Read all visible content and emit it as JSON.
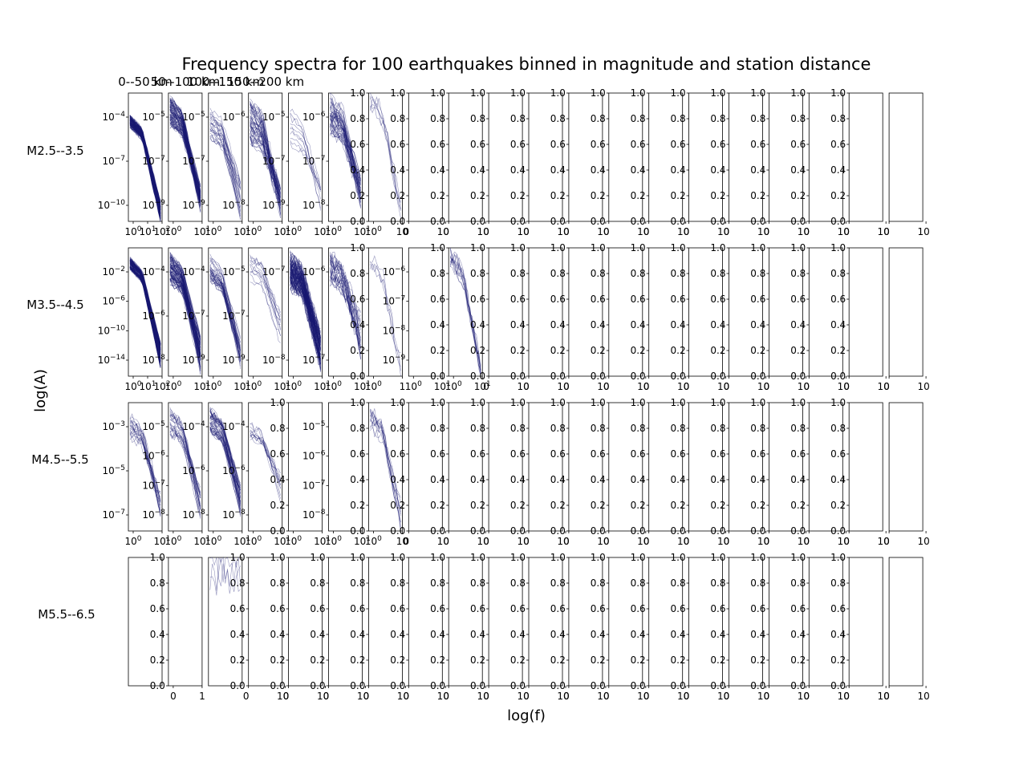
{
  "figure": {
    "title": "Frequency spectra for 100 earthquakes binned in magnitude and station distance",
    "xlabel": "log(f)",
    "ylabel": "log(A)",
    "column_titles": [
      "0--50 km",
      "50--100 km",
      "100--150 km",
      "150--200 km"
    ],
    "row_labels": [
      "M2.5--3.5",
      "M3.5--4.5",
      "M4.5--5.5",
      "M5.5--6.5"
    ],
    "line_color": "#191970"
  },
  "chart_data": {
    "type": "line",
    "description_grid": "4 rows (magnitude bins) x 20 columns (distance bins); log-log spectra of amplitude A vs frequency f",
    "columns": 20,
    "rows": [
      {
        "label": "M2.5--3.5",
        "panels": [
          {
            "col": 0,
            "yticks": [
              "10^-4",
              "10^-7",
              "10^-10"
            ],
            "xticks": [
              "10^0",
              "10^1",
              "10^2"
            ],
            "ylim": [
              1e-12,
              0.01
            ],
            "curves": 140,
            "amp_hi": [
              -3.8,
              -4.6
            ],
            "amp_lo": [
              -10.5,
              -12.0
            ]
          },
          {
            "col": 1,
            "yticks": [
              "10^-5",
              "10^-7",
              "10^-9"
            ],
            "xticks": [
              "10^0",
              "10^1"
            ],
            "ylim": [
              1e-10,
              0.0001
            ],
            "curves": 80,
            "amp_hi": [
              -4.2,
              -5.6
            ],
            "amp_lo": [
              -8.4,
              -9.5
            ]
          },
          {
            "col": 2,
            "yticks": [
              "10^-5",
              "10^-7",
              "10^-9"
            ],
            "xticks": [
              "10^0",
              "10^1"
            ],
            "ylim": [
              1e-10,
              0.0001
            ],
            "curves": 25,
            "amp_hi": [
              -4.8,
              -6.2
            ],
            "amp_lo": [
              -8.0,
              -9.8
            ]
          },
          {
            "col": 3,
            "yticks": [
              "10^-6",
              "10^-8"
            ],
            "xticks": [
              "10^0",
              "10^1"
            ],
            "ylim": [
              1e-09,
              1e-05
            ],
            "curves": 50,
            "amp_hi": [
              -5.2,
              -6.6
            ],
            "amp_lo": [
              -8.0,
              -8.8
            ]
          },
          {
            "col": 4,
            "yticks": [
              "10^-5",
              "10^-7",
              "10^-9"
            ],
            "xticks": [
              "10^0",
              "10^1"
            ],
            "ylim": [
              1e-10,
              0.0001
            ],
            "curves": 10,
            "amp_hi": [
              -4.6,
              -6.4
            ],
            "amp_lo": [
              -8.4,
              -9.6
            ]
          },
          {
            "col": 5,
            "yticks": [
              "10^-6",
              "10^-7",
              "10^-8"
            ],
            "xticks": [
              "10^0",
              "10^1"
            ],
            "ylim": [
              1e-09,
              3e-06
            ],
            "curves": 45,
            "amp_hi": [
              -5.6,
              -6.6
            ],
            "amp_lo": [
              -7.8,
              -8.6
            ]
          },
          {
            "col": 6,
            "yticks": [],
            "xticks": [
              "10^0",
              "10"
            ],
            "ylim": [
              0,
              1
            ],
            "linear": true,
            "curves": 6,
            "lin_hi": [
              0.9,
              1.0
            ],
            "lin_lo": [
              0.0,
              0.2
            ]
          }
        ]
      },
      {
        "label": "M3.5--4.5",
        "panels": [
          {
            "col": 0,
            "yticks": [
              "10^-2",
              "10^-6",
              "10^-10",
              "10^-14"
            ],
            "xticks": [
              "10^0",
              "10^1",
              "10^2"
            ],
            "ylim": [
              1e-16,
              0.1
            ],
            "curves": 130,
            "amp_hi": [
              -2.2,
              -3.5
            ],
            "amp_lo": [
              -12.0,
              -15.0
            ]
          },
          {
            "col": 1,
            "yticks": [
              "10^-4",
              "10^-6",
              "10^-8"
            ],
            "xticks": [
              "10^0",
              "10^1"
            ],
            "ylim": [
              1e-09,
              0.001
            ],
            "curves": 90,
            "amp_hi": [
              -3.3,
              -4.6
            ],
            "amp_lo": [
              -7.2,
              -8.8
            ]
          },
          {
            "col": 2,
            "yticks": [
              "10^-4",
              "10^-7",
              "10^-9"
            ],
            "xticks": [
              "10^0",
              "10^1"
            ],
            "ylim": [
              1e-10,
              0.0001
            ],
            "curves": 35,
            "amp_hi": [
              -4.3,
              -5.6
            ],
            "amp_lo": [
              -8.2,
              -9.6
            ]
          },
          {
            "col": 3,
            "yticks": [
              "10^-5",
              "10^-7",
              "10^-9"
            ],
            "xticks": [
              "10^0",
              "10^1"
            ],
            "ylim": [
              1e-10,
              0.0001
            ],
            "curves": 12,
            "amp_hi": [
              -4.3,
              -5.6
            ],
            "amp_lo": [
              -7.0,
              -8.6
            ]
          },
          {
            "col": 4,
            "yticks": [
              "10^-7",
              "10^-8"
            ],
            "xticks": [
              "10^0",
              "10^1"
            ],
            "ylim": [
              1e-09,
              1e-06
            ],
            "curves": 110,
            "amp_hi": [
              -6.2,
              -6.9
            ],
            "amp_lo": [
              -8.0,
              -8.8
            ]
          },
          {
            "col": 5,
            "yticks": [
              "10^-6",
              "10^-7"
            ],
            "xticks": [
              "10^0",
              "10^1"
            ],
            "ylim": [
              1e-08,
              3e-06
            ],
            "curves": 30,
            "amp_hi": [
              -5.6,
              -6.2
            ],
            "amp_lo": [
              -6.8,
              -7.6
            ]
          },
          {
            "col": 6,
            "yticks": [],
            "xticks": [
              "10^0",
              "1"
            ],
            "ylim": [
              0,
              1
            ],
            "linear": true,
            "curves": 4,
            "lin_hi": [
              0.8,
              1.0
            ],
            "lin_lo": [
              0.0,
              0.2
            ]
          },
          {
            "col": 7,
            "yticks": [
              "10^-6",
              "10^-7",
              "10^-8",
              "10^-9"
            ],
            "xticks": [
              "10^0",
              "10^1"
            ],
            "ylim": [
              1e-10,
              1e-05
            ],
            "curves": 0
          },
          {
            "col": 8,
            "yticks": [],
            "xticks": [
              "10^0",
              "10^1"
            ],
            "ylim": [
              0,
              1
            ],
            "linear": true,
            "curves": 12,
            "lin_hi": [
              0.85,
              1.0
            ],
            "lin_lo": [
              0.0,
              0.1
            ]
          }
        ]
      },
      {
        "label": "M4.5--5.5",
        "panels": [
          {
            "col": 0,
            "yticks": [
              "10^-3",
              "10^-5",
              "10^-7"
            ],
            "xticks": [
              "10^0",
              "10^1"
            ],
            "ylim": [
              3e-08,
              0.001
            ],
            "curves": 20,
            "amp_hi": [
              -3.4,
              -4.2
            ],
            "amp_lo": [
              -6.2,
              -7.0
            ]
          },
          {
            "col": 1,
            "yticks": [
              "10^-5",
              "10^-6",
              "10^-7",
              "10^-8"
            ],
            "xticks": [
              "10^0",
              "10^1"
            ],
            "ylim": [
              1e-09,
              0.0001
            ],
            "curves": 25,
            "amp_hi": [
              -4.3,
              -5.2
            ],
            "amp_lo": [
              -7.4,
              -8.6
            ]
          },
          {
            "col": 2,
            "yticks": [
              "10^-4",
              "10^-6",
              "10^-8"
            ],
            "xticks": [
              "10^0",
              "10^1"
            ],
            "ylim": [
              1e-09,
              0.001
            ],
            "curves": 45,
            "amp_hi": [
              -3.3,
              -4.3
            ],
            "amp_lo": [
              -6.8,
              -8.2
            ]
          },
          {
            "col": 3,
            "yticks": [
              "10^-4",
              "10^-6",
              "10^-8"
            ],
            "xticks": [
              "10^0",
              "10^1"
            ],
            "ylim": [
              1e-09,
              0.001
            ],
            "curves": 12,
            "amp_hi": [
              -3.8,
              -4.8
            ],
            "amp_lo": [
              -6.4,
              -7.6
            ]
          },
          {
            "col": 4,
            "yticks": [],
            "xticks": [
              "10^0",
              "10^1"
            ],
            "ylim": [
              0,
              1
            ],
            "linear": true,
            "curves": 0
          },
          {
            "col": 5,
            "yticks": [
              "10^-5",
              "10^-6",
              "10^-7",
              "10^-8"
            ],
            "xticks": [
              "10^0",
              "10^1"
            ],
            "ylim": [
              1e-09,
              0.0001
            ],
            "curves": 0
          },
          {
            "col": 6,
            "yticks": [],
            "xticks": [
              "10^0",
              "10"
            ],
            "ylim": [
              0,
              1
            ],
            "linear": true,
            "curves": 12,
            "lin_hi": [
              0.8,
              0.95
            ],
            "lin_lo": [
              0.0,
              0.25
            ]
          }
        ]
      },
      {
        "label": "M5.5--6.5",
        "panels": [
          {
            "col": 0,
            "yticks": [],
            "xticks": [],
            "ylim": [
              0,
              1
            ],
            "linear": true,
            "curves": 0
          },
          {
            "col": 1,
            "yticks": [],
            "xticks": [
              "0",
              "1"
            ],
            "ylim": [
              0,
              1
            ],
            "linear": true,
            "curves": 0
          },
          {
            "col": 2,
            "yticks": [],
            "xticks": [],
            "ylim": [
              0,
              1
            ],
            "flat": true,
            "curves": 3
          }
        ]
      }
    ],
    "empty_panel": {
      "yticks": [
        "0.0",
        "0.2",
        "0.4",
        "0.6",
        "0.8",
        "1.0"
      ],
      "xticks": [
        "0",
        "10"
      ],
      "ylim": [
        0,
        1
      ]
    }
  }
}
